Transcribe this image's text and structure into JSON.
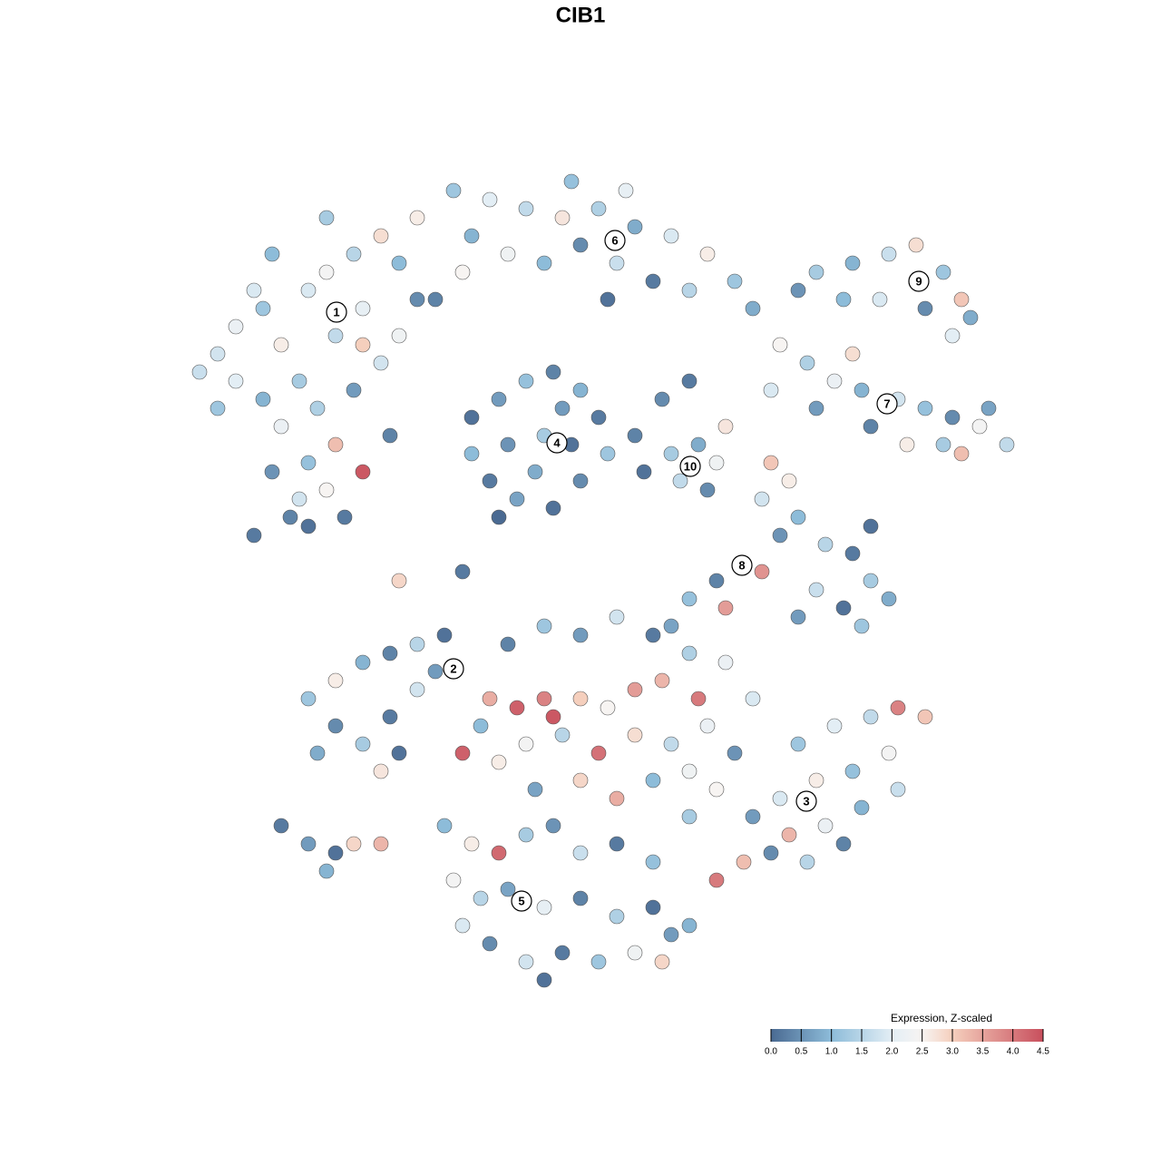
{
  "chart_data": {
    "type": "scatter",
    "title": "CIB1",
    "xlim": [
      -50,
      50
    ],
    "ylim": [
      -50,
      50
    ],
    "x": [
      -40,
      -38,
      -35,
      -33,
      -30,
      -28,
      -25,
      -22,
      -20,
      -18,
      -24,
      -27,
      -31,
      -35,
      -38,
      -42,
      -33,
      -29,
      -25,
      -22,
      -20,
      -27,
      -30,
      -34,
      -31,
      -28,
      -24,
      -26,
      -30,
      -32,
      -36,
      -18,
      -28,
      -34,
      -24,
      -36,
      -40,
      -21,
      -14,
      -10,
      -6,
      -2,
      2,
      6,
      10,
      14,
      17,
      -12,
      -8,
      -4,
      0,
      4,
      8,
      12,
      -13,
      -1,
      5,
      -16,
      3,
      19,
      26,
      30,
      34,
      37,
      40,
      42,
      38,
      33,
      29,
      24,
      41,
      43,
      22,
      25,
      28,
      31,
      35,
      38,
      41,
      44,
      47,
      32,
      36,
      40,
      21,
      26,
      42,
      30,
      45,
      -12,
      -9,
      -6,
      -3,
      0,
      2,
      3,
      0,
      -3,
      -7,
      -10,
      -12,
      -8,
      -4,
      -1,
      -5,
      -9,
      -2,
      6,
      9,
      12,
      7,
      10,
      13,
      15,
      11,
      14,
      16,
      21,
      23,
      20,
      24,
      22,
      27,
      30,
      32,
      34,
      29,
      26,
      24,
      31,
      20,
      15,
      12,
      16,
      10,
      32,
      -30,
      -27,
      -24,
      -21,
      -18,
      -15,
      -27,
      -24,
      -21,
      -18,
      -16,
      -22,
      -29,
      -20,
      -33,
      -30,
      -27,
      -25,
      -22,
      -28,
      -8,
      -4,
      0,
      4,
      8,
      12,
      16,
      -10,
      -7,
      -4,
      -3,
      0,
      3,
      6,
      9,
      13,
      -6,
      -2,
      2,
      6,
      10,
      14,
      -9,
      -5,
      0,
      4,
      8,
      12,
      17,
      -11,
      -13,
      19,
      24,
      28,
      32,
      35,
      38,
      34,
      30,
      26,
      22,
      19,
      23,
      27,
      31,
      35,
      18,
      15,
      21,
      15,
      12,
      29,
      25,
      -15,
      -12,
      -9,
      -6,
      -3,
      0,
      4,
      8,
      -14,
      -11,
      -8,
      -4,
      0,
      4,
      8,
      12,
      -10,
      -6,
      -2,
      2,
      6,
      10,
      -13,
      -4,
      9,
      -20,
      -13
    ],
    "y": [
      25,
      28,
      30,
      26,
      32,
      34,
      36,
      38,
      35,
      31,
      30,
      27,
      22,
      20,
      22,
      23,
      17,
      19,
      21,
      24,
      27,
      15,
      13,
      12,
      9,
      10,
      12,
      7,
      6,
      7,
      5,
      40,
      40,
      36,
      26,
      32,
      19,
      16,
      43,
      42,
      41,
      40,
      41,
      39,
      38,
      36,
      33,
      38,
      36,
      35,
      37,
      35,
      33,
      32,
      34,
      44,
      43,
      31,
      31,
      30,
      34,
      35,
      36,
      37,
      34,
      31,
      30,
      31,
      31,
      32,
      27,
      29,
      26,
      24,
      22,
      21,
      20,
      19,
      18,
      17,
      15,
      17,
      15,
      15,
      21,
      19,
      14,
      25,
      19,
      18,
      20,
      22,
      23,
      21,
      18,
      14,
      11,
      8,
      9,
      11,
      14,
      15,
      16,
      15,
      12,
      7,
      19,
      16,
      20,
      22,
      12,
      14,
      15,
      13,
      11,
      10,
      17,
      13,
      11,
      9,
      7,
      5,
      4,
      3,
      0,
      -2,
      -3,
      -1,
      -4,
      -5,
      1,
      0,
      -2,
      -3,
      -5,
      6,
      -13,
      -11,
      -9,
      -8,
      -7,
      -6,
      -16,
      -18,
      -15,
      -12,
      -10,
      -21,
      -19,
      -19,
      -27,
      -29,
      -30,
      -29,
      -29,
      -32,
      -7,
      -5,
      -6,
      -4,
      -6,
      -8,
      -9,
      -13,
      -14,
      -13,
      -15,
      -13,
      -14,
      -12,
      -11,
      -13,
      -18,
      -17,
      -19,
      -17,
      -18,
      -16,
      -20,
      -23,
      -22,
      -24,
      -22,
      -21,
      -19,
      -16,
      -19,
      -13,
      -18,
      -16,
      -15,
      -14,
      -15,
      -19,
      -21,
      -22,
      -24,
      -26,
      -28,
      -27,
      -25,
      -23,
      -31,
      -33,
      -30,
      -23,
      -26,
      -29,
      -31,
      -27,
      -29,
      -30,
      -28,
      -27,
      -30,
      -29,
      -31,
      -33,
      -35,
      -34,
      -36,
      -35,
      -37,
      -36,
      -38,
      -40,
      -42,
      -41,
      -42,
      -41,
      -39,
      -38,
      -44,
      -42,
      0,
      1
    ],
    "values": [
      1.8,
      2.2,
      1.2,
      2.6,
      1.9,
      2.4,
      1.5,
      2.8,
      1.0,
      0.4,
      2.1,
      1.6,
      1.3,
      0.9,
      2.0,
      1.7,
      2.2,
      1.4,
      0.6,
      1.8,
      2.3,
      3.2,
      1.1,
      0.5,
      1.8,
      2.5,
      4.4,
      0.2,
      0.1,
      0.3,
      0.2,
      2.6,
      1.3,
      1.0,
      3.0,
      1.9,
      1.2,
      0.3,
      1.2,
      2.0,
      1.6,
      2.7,
      1.4,
      0.8,
      1.9,
      2.6,
      1.2,
      0.9,
      2.3,
      1.0,
      0.4,
      1.7,
      0.2,
      1.5,
      2.5,
      1.1,
      2.1,
      0.3,
      0.1,
      0.8,
      1.3,
      0.9,
      1.7,
      2.8,
      1.2,
      3.1,
      0.4,
      1.9,
      1.0,
      0.5,
      2.0,
      0.8,
      2.5,
      1.4,
      2.2,
      0.9,
      1.8,
      1.1,
      0.4,
      2.4,
      1.6,
      0.3,
      2.6,
      1.3,
      1.9,
      0.6,
      3.2,
      2.8,
      0.7,
      0.1,
      0.6,
      1.1,
      0.3,
      0.9,
      0.2,
      1.2,
      0.4,
      0.1,
      0.7,
      0.2,
      1.0,
      0.5,
      1.3,
      0.1,
      0.8,
      0.0,
      0.6,
      0.3,
      0.4,
      0.2,
      0.1,
      1.3,
      0.8,
      2.3,
      1.6,
      0.4,
      2.7,
      3.1,
      2.6,
      1.8,
      1.0,
      0.5,
      1.5,
      0.2,
      1.3,
      0.8,
      0.1,
      1.7,
      0.6,
      1.2,
      3.7,
      0.3,
      1.1,
      3.6,
      0.7,
      0.1,
      1.2,
      2.6,
      0.9,
      0.3,
      1.5,
      0.1,
      0.4,
      1.3,
      0.2,
      1.8,
      0.6,
      2.7,
      0.8,
      0.1,
      0.2,
      0.6,
      0.1,
      2.9,
      3.3,
      0.9,
      0.3,
      1.2,
      0.6,
      1.8,
      0.2,
      1.4,
      2.2,
      3.4,
      4.3,
      3.9,
      4.4,
      3.0,
      2.5,
      3.6,
      3.3,
      4.0,
      2.4,
      1.5,
      4.1,
      2.8,
      1.6,
      2.2,
      2.6,
      0.7,
      2.9,
      3.4,
      1.0,
      2.3,
      0.5,
      1.0,
      4.3,
      1.9,
      1.2,
      2.0,
      1.6,
      3.9,
      3.1,
      2.4,
      1.1,
      2.6,
      1.9,
      0.6,
      3.3,
      2.2,
      0.9,
      1.7,
      3.2,
      4.0,
      0.4,
      2.5,
      1.3,
      0.3,
      1.5,
      1.0,
      2.6,
      4.2,
      1.3,
      0.5,
      1.7,
      0.2,
      1.1,
      2.4,
      1.5,
      0.7,
      2.1,
      0.3,
      1.4,
      0.1,
      0.9,
      0.4,
      1.8,
      0.2,
      1.2,
      2.3,
      0.6,
      1.9,
      0.1,
      2.9,
      2.9,
      0.2
    ],
    "annotations": [
      {
        "text": "1",
        "x": -26.9,
        "y": 29.6
      },
      {
        "text": "2",
        "x": -14,
        "y": -9.7
      },
      {
        "text": "3",
        "x": 24.9,
        "y": -24.3
      },
      {
        "text": "4",
        "x": -2.6,
        "y": 15.2
      },
      {
        "text": "5",
        "x": -6.5,
        "y": -35.3
      },
      {
        "text": "6",
        "x": 3.8,
        "y": 37.5
      },
      {
        "text": "7",
        "x": 33.8,
        "y": 19.5
      },
      {
        "text": "8",
        "x": 17.8,
        "y": 1.7
      },
      {
        "text": "9",
        "x": 37.3,
        "y": 33
      },
      {
        "text": "10",
        "x": 12.1,
        "y": 12.6
      }
    ],
    "colorbar": {
      "title": "Expression, Z-scaled",
      "range": [
        0,
        4.5
      ],
      "ticks": [
        {
          "value": 0,
          "label": "0.0"
        },
        0.5,
        {
          "value": 1,
          "label": "1.0"
        },
        1.5,
        {
          "value": 2,
          "label": "2.0"
        },
        2.5,
        {
          "value": 3,
          "label": "3.0"
        },
        3.5,
        {
          "value": 4,
          "label": "4.0"
        },
        4.5
      ],
      "stops": [
        [
          0,
          "#4a6a92"
        ],
        [
          1,
          "#8dbcd9"
        ],
        [
          2,
          "#e3eef5"
        ],
        [
          2.5,
          "#f7f4f2"
        ],
        [
          3,
          "#f5cfbd"
        ],
        [
          4.5,
          "#c84f5d"
        ]
      ]
    }
  }
}
